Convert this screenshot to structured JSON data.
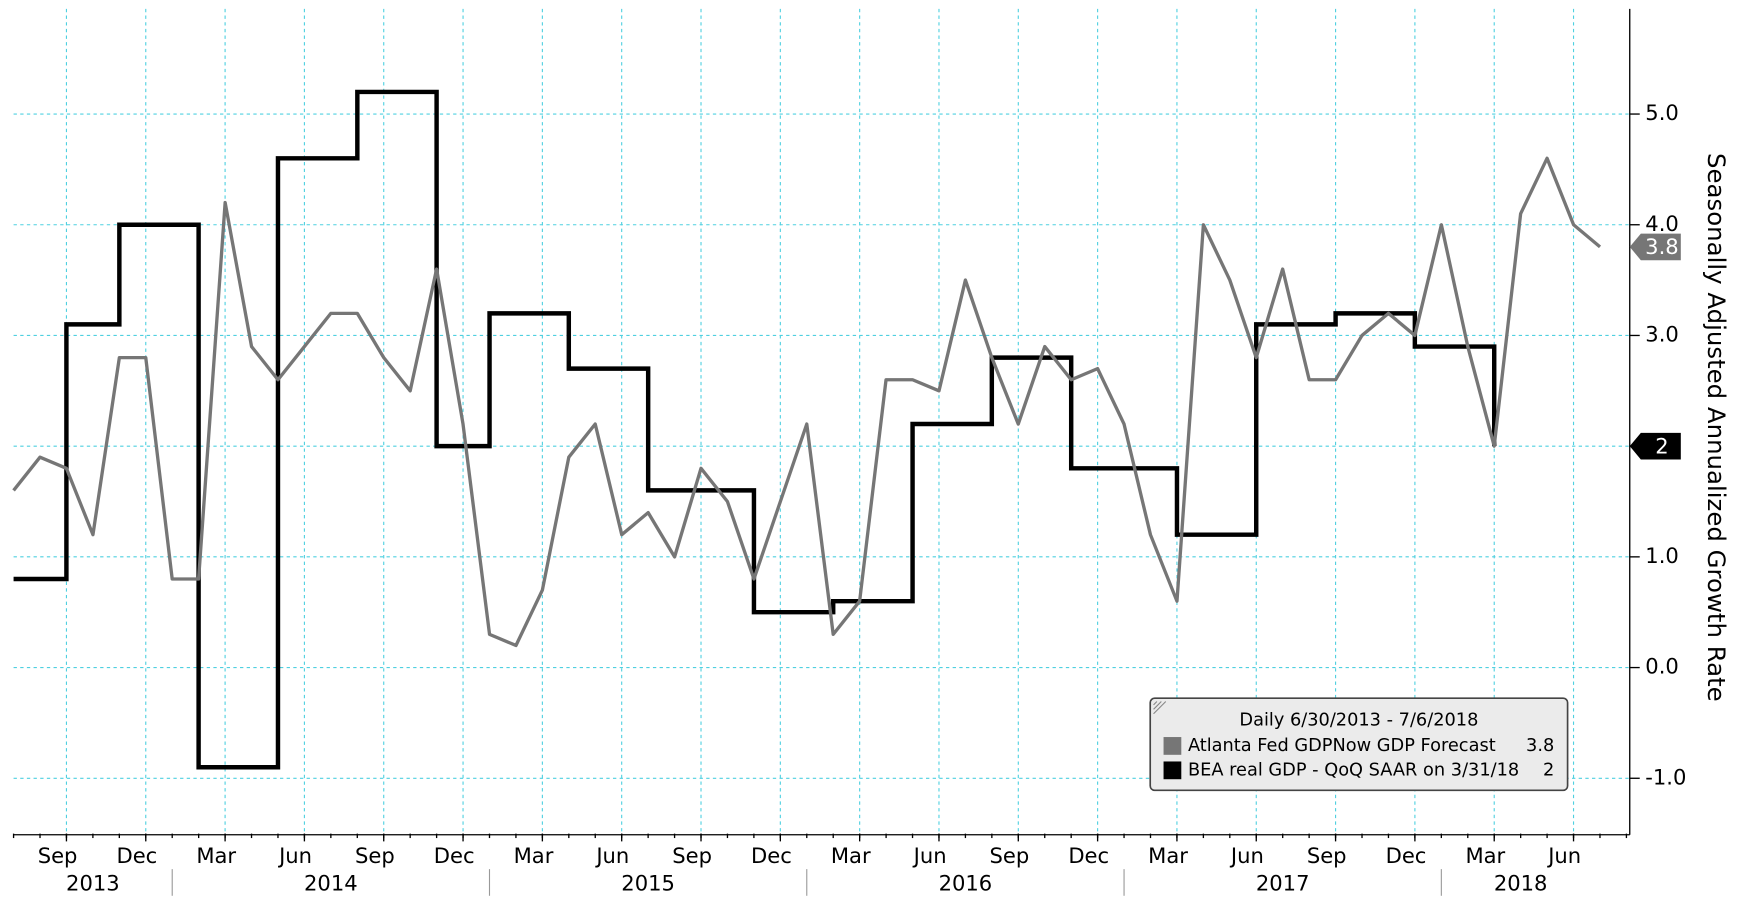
{
  "chart_data": {
    "type": "line",
    "y_axis_label": "Seasonally Adjusted Annualized Growth Rate",
    "legend_title": "Daily 6/30/2013 - 7/6/2018",
    "legend": "lower right",
    "grid": true,
    "xlim": [
      "2013-07",
      "2018-08"
    ],
    "ylim": [
      -1.5,
      5.95
    ],
    "yticks": [
      {
        "value": -1,
        "label": "-1.0"
      },
      {
        "value": 0,
        "label": "0.0"
      },
      {
        "value": 1,
        "label": "1.0"
      },
      {
        "value": 2,
        "label": "2.0"
      },
      {
        "value": 3,
        "label": "3.0"
      },
      {
        "value": 4,
        "label": "4.0"
      },
      {
        "value": 5,
        "label": "5.0"
      }
    ],
    "xticks": [
      {
        "value": "2013-09",
        "label": "Sep"
      },
      {
        "value": "2013-12",
        "label": "Dec"
      },
      {
        "value": "2014-03",
        "label": "Mar"
      },
      {
        "value": "2014-06",
        "label": "Jun"
      },
      {
        "value": "2014-09",
        "label": "Sep"
      },
      {
        "value": "2014-12",
        "label": "Dec"
      },
      {
        "value": "2015-03",
        "label": "Mar"
      },
      {
        "value": "2015-06",
        "label": "Jun"
      },
      {
        "value": "2015-09",
        "label": "Sep"
      },
      {
        "value": "2015-12",
        "label": "Dec"
      },
      {
        "value": "2016-03",
        "label": "Mar"
      },
      {
        "value": "2016-06",
        "label": "Jun"
      },
      {
        "value": "2016-09",
        "label": "Sep"
      },
      {
        "value": "2016-12",
        "label": "Dec"
      },
      {
        "value": "2017-03",
        "label": "Mar"
      },
      {
        "value": "2017-06",
        "label": "Jun"
      },
      {
        "value": "2017-09",
        "label": "Sep"
      },
      {
        "value": "2017-12",
        "label": "Dec"
      },
      {
        "value": "2018-03",
        "label": "Mar"
      },
      {
        "value": "2018-06",
        "label": "Jun"
      }
    ],
    "years": [
      "2013",
      "2014",
      "2015",
      "2016",
      "2017",
      "2018"
    ],
    "series": [
      {
        "name": "Atlanta Fed GDPNow GDP Forecast",
        "color": "#767676",
        "style": "line",
        "x": [
          "2013-07",
          "2013-08",
          "2013-09",
          "2013-10",
          "2013-11",
          "2013-12",
          "2014-01",
          "2014-02",
          "2014-03",
          "2014-04",
          "2014-05",
          "2014-06",
          "2014-07",
          "2014-08",
          "2014-09",
          "2014-10",
          "2014-11",
          "2014-12",
          "2015-01",
          "2015-02",
          "2015-03",
          "2015-04",
          "2015-05",
          "2015-06",
          "2015-07",
          "2015-08",
          "2015-09",
          "2015-10",
          "2015-11",
          "2015-12",
          "2016-01",
          "2016-02",
          "2016-03",
          "2016-04",
          "2016-05",
          "2016-06",
          "2016-07",
          "2016-08",
          "2016-09",
          "2016-10",
          "2016-11",
          "2016-12",
          "2017-01",
          "2017-02",
          "2017-03",
          "2017-04",
          "2017-05",
          "2017-06",
          "2017-07",
          "2017-08",
          "2017-09",
          "2017-10",
          "2017-11",
          "2017-12",
          "2018-01",
          "2018-02",
          "2018-03",
          "2018-04",
          "2018-05",
          "2018-06",
          "2018-07"
        ],
        "values": [
          1.6,
          1.9,
          1.8,
          1.2,
          2.8,
          2.8,
          0.8,
          0.8,
          4.2,
          2.9,
          2.6,
          2.9,
          3.2,
          3.2,
          2.8,
          2.5,
          3.6,
          2.2,
          0.3,
          0.2,
          0.7,
          1.9,
          2.2,
          1.2,
          1.4,
          1.0,
          1.8,
          1.5,
          0.8,
          1.5,
          2.2,
          0.3,
          0.6,
          2.6,
          2.6,
          2.5,
          3.5,
          2.8,
          2.2,
          2.9,
          2.6,
          2.7,
          2.2,
          1.2,
          0.6,
          4.0,
          3.5,
          2.8,
          3.6,
          2.6,
          2.6,
          3.0,
          3.2,
          3.0,
          4.0,
          2.9,
          2.0,
          4.1,
          4.6,
          4.0,
          3.8
        ]
      },
      {
        "name": "BEA real GDP - QoQ SAAR on 3/31/18",
        "color": "#000000",
        "style": "step",
        "x": [
          "2013-07",
          "2013-09",
          "2013-11",
          "2014-02",
          "2014-05",
          "2014-08",
          "2014-11",
          "2015-01",
          "2015-04",
          "2015-07",
          "2015-11",
          "2016-02",
          "2016-05",
          "2016-08",
          "2016-11",
          "2017-03",
          "2017-06",
          "2017-09",
          "2017-12",
          "2018-03"
        ],
        "values": [
          0.8,
          3.1,
          4.0,
          -0.9,
          4.6,
          5.2,
          2.0,
          3.2,
          2.7,
          1.6,
          0.5,
          0.6,
          2.2,
          2.8,
          1.8,
          1.2,
          3.1,
          3.2,
          2.9,
          2.0
        ]
      }
    ]
  }
}
